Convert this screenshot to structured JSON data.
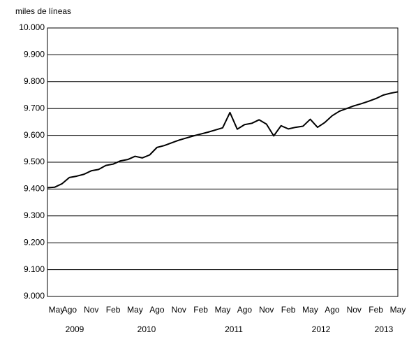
{
  "chart_data": {
    "type": "line",
    "ylabel": "miles de líneas",
    "categories": [
      "May",
      null,
      null,
      "Ago",
      null,
      null,
      "Nov",
      null,
      null,
      "Feb",
      null,
      null,
      "May",
      null,
      null,
      "Ago",
      null,
      null,
      "Nov",
      null,
      null,
      "Feb",
      null,
      null,
      "May",
      null,
      null,
      "Ago",
      null,
      null,
      "Nov",
      null,
      null,
      "Feb",
      null,
      null,
      "May",
      null,
      null,
      "Ago",
      null,
      null,
      "Nov",
      null,
      null,
      "Feb",
      null,
      null,
      "May"
    ],
    "year_labels": [
      "2009",
      "2010",
      "2011",
      "2012",
      "2013"
    ],
    "series": [
      {
        "color": "#000000",
        "values": [
          9405,
          9407,
          9420,
          9443,
          9448,
          9455,
          9468,
          9473,
          9488,
          9493,
          9505,
          9510,
          9522,
          9516,
          9527,
          9555,
          9562,
          9572,
          9582,
          9590,
          9598,
          9605,
          9612,
          9620,
          9628,
          9685,
          9623,
          9640,
          9645,
          9658,
          9642,
          9598,
          9636,
          9624,
          9630,
          9634,
          9660,
          9630,
          9648,
          9673,
          9690,
          9700,
          9710,
          9718,
          9727,
          9737,
          9750,
          9757,
          9762
        ]
      }
    ],
    "ylim": [
      9000,
      10000
    ],
    "yticks": [
      {
        "value": 9000,
        "label": "9.000"
      },
      {
        "value": 9100,
        "label": "9.100"
      },
      {
        "value": 9200,
        "label": "9.200"
      },
      {
        "value": 9300,
        "label": "9.300"
      },
      {
        "value": 9400,
        "label": "9.400"
      },
      {
        "value": 9500,
        "label": "9.500"
      },
      {
        "value": 9600,
        "label": "9.600"
      },
      {
        "value": 9700,
        "label": "9.700"
      },
      {
        "value": 9800,
        "label": "9.800"
      },
      {
        "value": 9900,
        "label": "9.900"
      },
      {
        "value": 10000,
        "label": "10.000"
      }
    ],
    "grid": true
  }
}
